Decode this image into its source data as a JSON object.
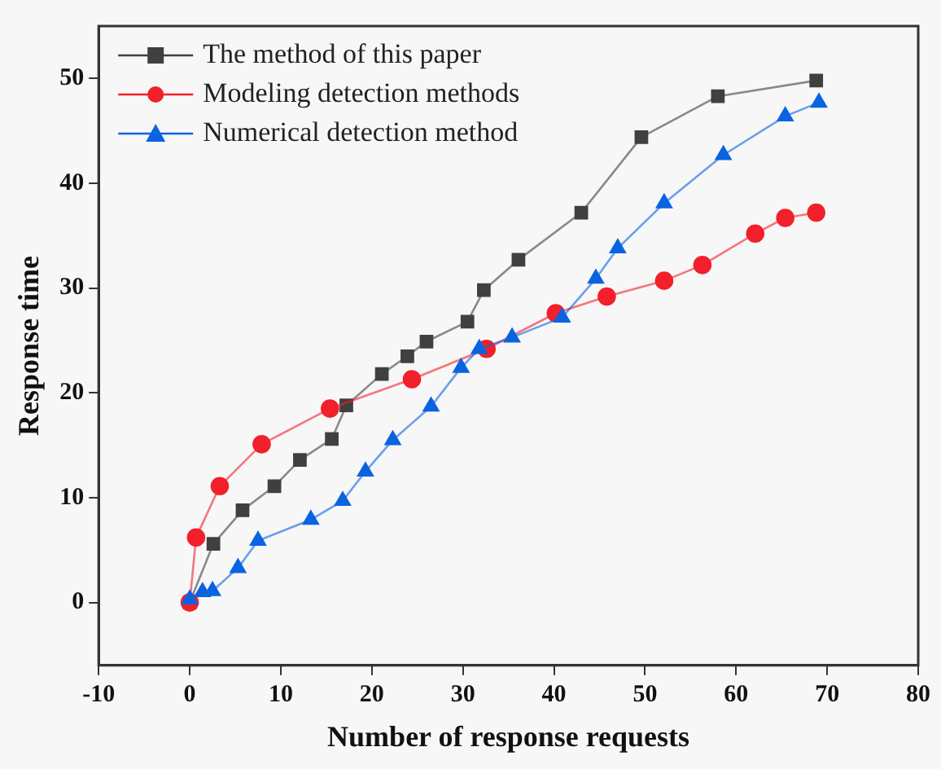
{
  "chart_data": {
    "type": "line",
    "xlabel": "Number of response requests",
    "ylabel": "Response time",
    "xlim": [
      -10,
      80
    ],
    "xticks": [
      -10,
      0,
      10,
      20,
      30,
      40,
      50,
      60,
      70,
      80
    ],
    "ylim": [
      -6,
      55
    ],
    "yticks": [
      0,
      10,
      20,
      30,
      40,
      50
    ],
    "grid": false,
    "legend": "top left",
    "line_style": "solid",
    "series": [
      {
        "name": "The method of this paper",
        "color": "#404040",
        "marker": "square",
        "x": [
          0,
          2.6,
          5.8,
          9.3,
          12.1,
          15.6,
          17.2,
          21.1,
          23.9,
          26,
          30.5,
          32.3,
          36.1,
          43,
          49.6,
          58,
          68.8
        ],
        "values": [
          0,
          5.6,
          8.8,
          11.1,
          13.6,
          15.6,
          18.8,
          21.8,
          23.5,
          24.9,
          26.8,
          29.8,
          32.7,
          37.2,
          44.4,
          48.3,
          49.8
        ]
      },
      {
        "name": "Modeling detection methods",
        "color": "#f2202a",
        "marker": "circle",
        "x": [
          0,
          0.7,
          3.3,
          7.9,
          15.4,
          24.4,
          32.6,
          40.2,
          45.8,
          52.1,
          56.3,
          62.1,
          65.4,
          68.8
        ],
        "values": [
          0,
          6.2,
          11.1,
          15.1,
          18.5,
          21.3,
          24.2,
          27.6,
          29.2,
          30.7,
          32.2,
          35.2,
          36.7,
          37.2
        ]
      },
      {
        "name": "Numerical detection method",
        "color": "#0a64e0",
        "marker": "triangle",
        "x": [
          0,
          1.4,
          2.5,
          5.3,
          7.5,
          13.3,
          16.8,
          19.3,
          22.3,
          26.5,
          29.8,
          31.8,
          35.4,
          40.9,
          44.6,
          47,
          52.1,
          58.6,
          65.4,
          69.1
        ],
        "values": [
          0.3,
          1,
          1.1,
          3.3,
          5.9,
          7.9,
          9.7,
          12.5,
          15.5,
          18.7,
          22.4,
          24.2,
          25.3,
          27.2,
          30.9,
          33.8,
          38.1,
          42.7,
          46.4,
          47.7
        ]
      }
    ]
  }
}
